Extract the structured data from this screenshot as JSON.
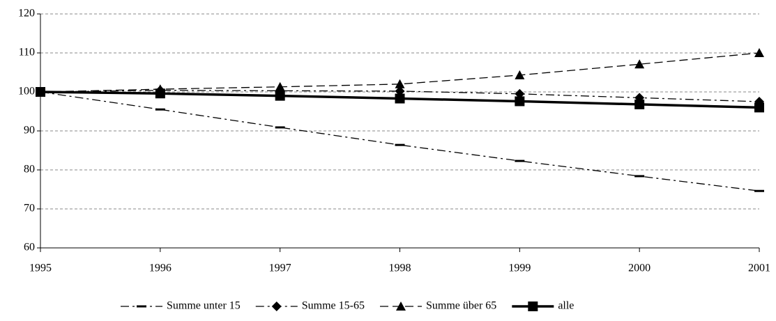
{
  "chart_data": {
    "type": "line",
    "x": [
      1995,
      1996,
      1997,
      1998,
      1999,
      2000,
      2001
    ],
    "xlim": [
      1995,
      2001
    ],
    "xticks": [
      1995,
      1996,
      1997,
      1998,
      1999,
      2000,
      2001
    ],
    "ylim": [
      60,
      120
    ],
    "yticks": [
      60,
      70,
      80,
      90,
      100,
      110,
      120
    ],
    "grid": true,
    "legend": "bottom",
    "series": [
      {
        "name": "Summe unter 15",
        "color": "#000000",
        "dash": "dashdot",
        "marker": "dash",
        "line_width": 1.3,
        "values": [
          100,
          95.5,
          90.9,
          86.4,
          82.3,
          78.4,
          74.6
        ]
      },
      {
        "name": "Summe 15-65",
        "color": "#000000",
        "dash": "dashdot",
        "marker": "diamond",
        "line_width": 1.3,
        "values": [
          100,
          100.4,
          100.3,
          100.2,
          99.5,
          98.5,
          97.5
        ]
      },
      {
        "name": "Summe über 65",
        "color": "#000000",
        "dash": "dash",
        "marker": "triangle",
        "line_width": 1.3,
        "values": [
          100,
          100.7,
          101.3,
          102,
          104.3,
          107.1,
          110
        ]
      },
      {
        "name": "alle",
        "color": "#000000",
        "dash": "solid",
        "marker": "square",
        "line_width": 3.5,
        "values": [
          100,
          99.6,
          99.0,
          98.3,
          97.6,
          96.8,
          96.0
        ]
      }
    ]
  }
}
